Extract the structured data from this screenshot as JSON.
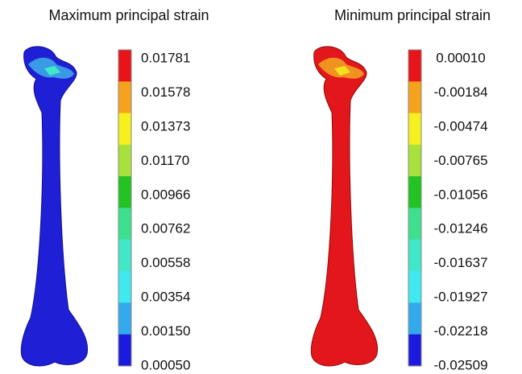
{
  "panels": [
    {
      "title": "Maximum principal strain",
      "legend": [
        "0.01781",
        "0.01578",
        "0.01373",
        "0.01170",
        "0.00966",
        "0.00762",
        "0.00558",
        "0.00354",
        "0.00150",
        "0.00050"
      ]
    },
    {
      "title": "Minimum principal strain",
      "legend": [
        "0.00010",
        "-0.00184",
        "-0.00474",
        "-0.00765",
        "-0.01056",
        "-0.01246",
        "-0.01637",
        "-0.01927",
        "-0.02218",
        "-0.02509"
      ]
    }
  ]
}
